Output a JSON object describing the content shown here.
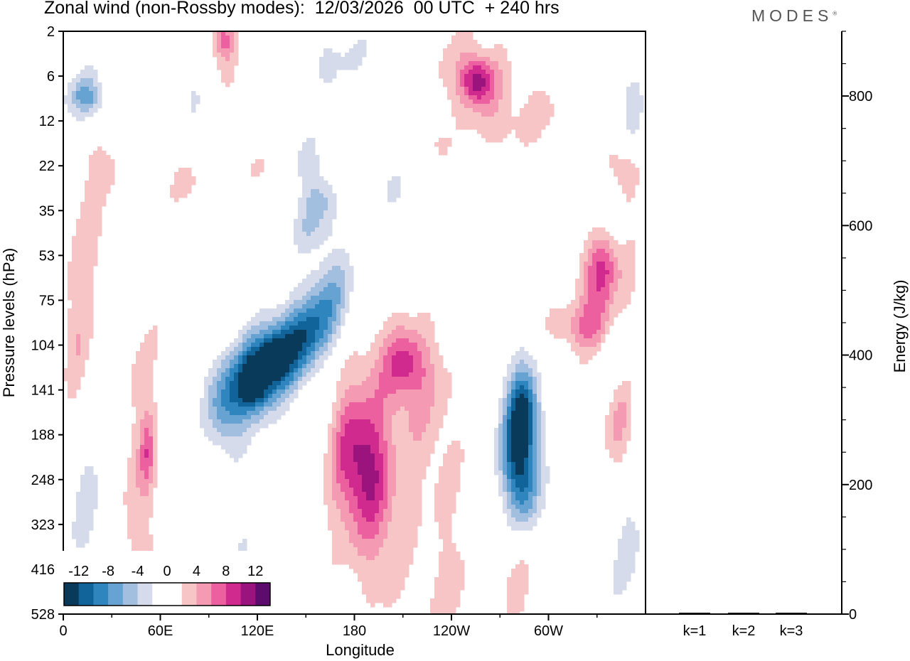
{
  "header": {
    "title": "Zonal wind (non-Rossby modes):  12/03/2026  00 UTC  + 240 hrs",
    "brand": "MODES",
    "brand_mark": "®"
  },
  "chart_data": [
    {
      "type": "heatmap",
      "title": "Zonal wind (non-Rossby modes):  12/03/2026  00 UTC  + 240 hrs",
      "xlabel": "Longitude",
      "ylabel": "Pressure levels (hPa)",
      "x_ticks": [
        "0",
        "60E",
        "120E",
        "180",
        "120W",
        "60W"
      ],
      "x_tick_values": [
        0,
        60,
        120,
        180,
        240,
        300
      ],
      "xlim": [
        0,
        360
      ],
      "y_ticks": [
        "2",
        "6",
        "12",
        "22",
        "35",
        "53",
        "75",
        "104",
        "141",
        "188",
        "248",
        "323",
        "416",
        "528"
      ],
      "y_axis": "pressure, top = 2 hPa, bottom = 528 hPa",
      "colorbar": {
        "labels": [
          "-12",
          "-8",
          "-4",
          "0",
          "4",
          "8",
          "12"
        ],
        "levels": [
          -14,
          -12,
          -10,
          -8,
          -6,
          -4,
          -2,
          2,
          4,
          6,
          8,
          10,
          12,
          14
        ],
        "colors": [
          "#0a3a5a",
          "#10649a",
          "#2f86bf",
          "#66a3d2",
          "#a3bfdf",
          "#d6dbec",
          "#ffffff",
          "#ffffff",
          "#f8c5c7",
          "#f59ab3",
          "#ec609f",
          "#d12a8e",
          "#9b147e",
          "#5e0b6e"
        ]
      },
      "features": [
        {
          "label": "negative jet core",
          "lon": 120,
          "level_hPa": 125,
          "value": -14
        },
        {
          "label": "negative jet core",
          "lon": 282,
          "level_hPa": 188,
          "value": -14
        },
        {
          "label": "positive maximum",
          "lon": 190,
          "level_hPa": 180,
          "value": 10
        },
        {
          "label": "positive maximum",
          "lon": 252,
          "level_hPa": 7,
          "value": 10
        },
        {
          "label": "positive maximum",
          "lon": 328,
          "level_hPa": 65,
          "value": 10
        }
      ]
    },
    {
      "type": "bar",
      "categories": [
        "k=1",
        "k=2",
        "k=3"
      ],
      "values": [
        1,
        1,
        1
      ],
      "ylabel": "Energy (J/kg)",
      "y_ticks": [
        "0",
        "200",
        "400",
        "600",
        "800"
      ],
      "ylim": [
        0,
        900
      ]
    }
  ]
}
